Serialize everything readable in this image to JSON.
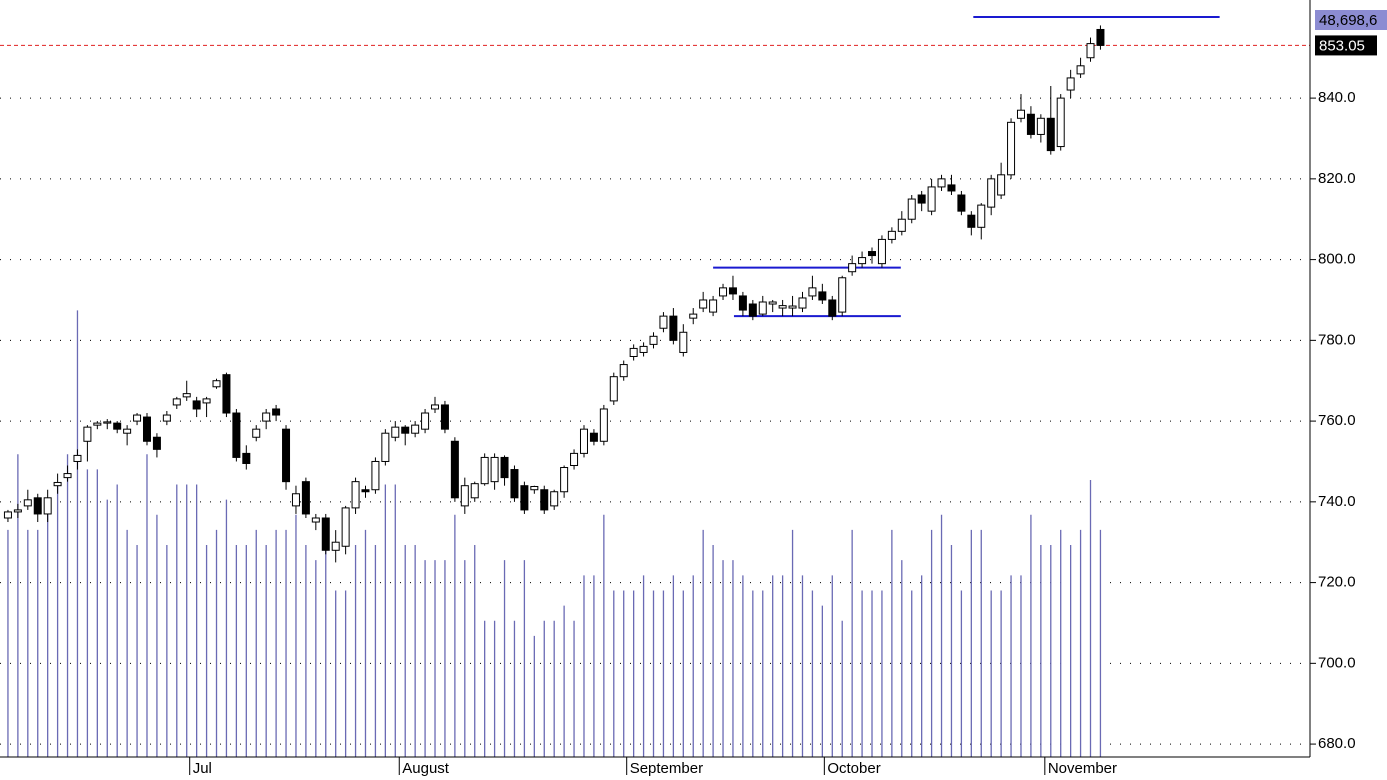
{
  "chart_data": {
    "type": "candlestick",
    "xlim": [
      -0.8,
      131.1
    ],
    "xticks": [
      {
        "value": 18.3,
        "label": "Jul"
      },
      {
        "value": 39.4,
        "label": "August"
      },
      {
        "value": 62.3,
        "label": "September"
      },
      {
        "value": 82.2,
        "label": "October"
      },
      {
        "value": 104.4,
        "label": "November"
      }
    ],
    "ylim": [
      676.8,
      864.3
    ],
    "yticks": [
      {
        "value": 680,
        "label": "680.0"
      },
      {
        "value": 700,
        "label": "700.0"
      },
      {
        "value": 720,
        "label": "720.0"
      },
      {
        "value": 740,
        "label": "740.0"
      },
      {
        "value": 760,
        "label": "760.0"
      },
      {
        "value": 780,
        "label": "780.0"
      },
      {
        "value": 800,
        "label": "800.0"
      },
      {
        "value": 820,
        "label": "820.0"
      },
      {
        "value": 840,
        "label": "840.0"
      }
    ],
    "y2lim": [
      0,
      50
    ],
    "grid": true,
    "open": [
      736,
      737.5,
      739,
      741,
      737,
      744,
      746,
      750,
      755,
      759,
      759.5,
      759.5,
      757,
      760,
      761,
      756,
      760,
      764,
      766,
      765,
      764.5,
      768.5,
      771.5,
      762,
      752,
      756,
      760,
      763,
      758,
      739,
      745,
      735,
      736,
      728,
      729,
      738.5,
      743,
      743,
      750,
      756,
      758.5,
      757,
      758,
      763,
      764,
      755,
      739,
      741,
      744.5,
      745,
      751,
      748,
      744,
      743,
      743,
      739,
      742.5,
      749,
      752,
      757,
      755,
      765,
      771,
      776,
      777,
      779,
      783,
      786,
      777,
      785.5,
      788,
      787,
      791,
      793,
      791,
      789,
      786.5,
      789,
      788,
      788,
      788,
      791,
      792,
      790,
      787,
      797,
      799,
      802,
      799,
      805,
      807,
      810,
      816,
      812,
      818,
      818.5,
      816,
      811,
      808,
      813,
      816,
      821,
      835,
      836,
      831,
      835,
      828,
      842,
      846,
      850,
      857
    ],
    "high": [
      738,
      739.5,
      743,
      742,
      743,
      747,
      749,
      753,
      759,
      760,
      760.5,
      760,
      759,
      762,
      762,
      757,
      762.5,
      766,
      770,
      766,
      766,
      770.5,
      772,
      763,
      754,
      759,
      763,
      764,
      759,
      744,
      746,
      737,
      737,
      733,
      739,
      746,
      744,
      751,
      758,
      760,
      759,
      760,
      763,
      766,
      765,
      756,
      746,
      745,
      752,
      752,
      751.5,
      749,
      745,
      744,
      744,
      743,
      749,
      753,
      759,
      758,
      764,
      772,
      775,
      779,
      779.5,
      782,
      787,
      788,
      784,
      788,
      792,
      791,
      794,
      796,
      792,
      790,
      791,
      790,
      790,
      791,
      792,
      796,
      794,
      791,
      796,
      801,
      802,
      803,
      806,
      808,
      812,
      816,
      817,
      820,
      821,
      821,
      817,
      812,
      814,
      821,
      824,
      835,
      841,
      838,
      836,
      843,
      841,
      847,
      850,
      855,
      858
    ],
    "low": [
      735,
      736,
      738,
      735,
      735,
      742,
      745,
      748,
      750,
      758,
      758,
      757,
      754,
      759,
      754,
      751,
      759,
      763,
      765,
      761,
      761,
      768,
      761,
      750,
      748,
      755,
      758,
      760,
      743,
      737,
      736,
      733,
      727,
      725,
      727,
      737,
      741,
      742,
      749,
      755,
      754,
      756,
      757,
      762,
      757,
      740,
      737,
      740,
      744,
      743,
      744,
      740,
      737,
      742,
      737,
      738,
      741,
      748,
      751,
      754,
      754,
      764,
      770,
      775,
      776,
      778,
      782,
      779,
      776,
      784,
      787,
      786,
      790,
      790,
      786,
      785,
      786,
      787,
      786,
      786,
      787,
      790,
      789,
      785,
      786,
      796,
      798,
      799,
      798,
      804,
      806,
      809,
      812,
      811,
      817,
      816,
      811,
      806,
      805,
      811,
      815,
      820,
      834,
      830,
      829,
      826,
      827,
      840,
      845,
      849,
      852
    ],
    "close": [
      737.5,
      738,
      740.5,
      737,
      741,
      744.8,
      747,
      751.5,
      758.5,
      759.5,
      759.8,
      758,
      758,
      761.5,
      755,
      753,
      761.5,
      765.5,
      766.8,
      763,
      765.5,
      770,
      762,
      751,
      749.5,
      758,
      762,
      761.5,
      745,
      742,
      737,
      736,
      728,
      730,
      738.5,
      745,
      742.5,
      750,
      757,
      758.5,
      757,
      759,
      762,
      764,
      758,
      741,
      744,
      744.5,
      751,
      751,
      746,
      741,
      738,
      743.8,
      738,
      742.5,
      748.5,
      752,
      758,
      755,
      763,
      771,
      774,
      778,
      778.5,
      781,
      786,
      780,
      782,
      786.5,
      790,
      790,
      793,
      791.5,
      787.5,
      786,
      789.5,
      789.5,
      788.6,
      788.5,
      790.5,
      793,
      790,
      786,
      795.5,
      799,
      800.5,
      801,
      805,
      807,
      810,
      815,
      814,
      818,
      820,
      817,
      812,
      808,
      813.5,
      820,
      821,
      834,
      837,
      831,
      835,
      827,
      840,
      845,
      848,
      853.5,
      853.05
    ],
    "volume": [
      15,
      20,
      15,
      15,
      17,
      18,
      20,
      29.5,
      19,
      19,
      17,
      18,
      15,
      14,
      20,
      16,
      14,
      18,
      18,
      18,
      14,
      15,
      17,
      14,
      14,
      15,
      14,
      15,
      15,
      16,
      14,
      13,
      14,
      11,
      11,
      14,
      15,
      14,
      18,
      18,
      14,
      14,
      13,
      13,
      13,
      16,
      13,
      14,
      9,
      9,
      13,
      9,
      13,
      8,
      9,
      9,
      10,
      9,
      12,
      12,
      16,
      11,
      11,
      11,
      12,
      11,
      11,
      12,
      11,
      12,
      15,
      14,
      13,
      13,
      12,
      11,
      11,
      12,
      12,
      15,
      12,
      11,
      10,
      12,
      9,
      15,
      11,
      11,
      11,
      15,
      13,
      11,
      12,
      15,
      16,
      14,
      11,
      15,
      15,
      11,
      11,
      12,
      12,
      16,
      14,
      14,
      15,
      14,
      15,
      18.3,
      15
    ],
    "volume_color": "#6a6ab4",
    "last_price": 853.05,
    "last_price_color": "#e02020",
    "volume_label": "48,698,6",
    "levels": [
      {
        "value": 798,
        "from": 71,
        "to": 89.9,
        "color": "#1a1ad0"
      },
      {
        "value": 786,
        "from": 73.1,
        "to": 89.9,
        "color": "#1a1ad0"
      },
      {
        "value": 860.1,
        "from": 97.2,
        "to": 122,
        "color": "#1a1ad0"
      }
    ]
  }
}
